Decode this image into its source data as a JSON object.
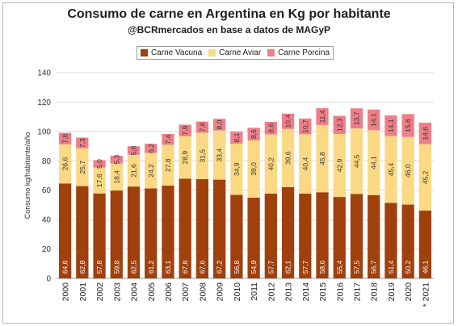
{
  "chart_data": {
    "type": "bar",
    "stacked": true,
    "title": "Consumo de carne en Argentina en Kg por habitante",
    "subtitle": "@BCRmercados en base a datos de MAGyP",
    "ylabel": "Consumo kg/habitante/año",
    "ylim": [
      0,
      140
    ],
    "yticks": [
      0,
      20,
      40,
      60,
      80,
      100,
      120,
      140
    ],
    "grid": true,
    "legend_position": "top",
    "categories": [
      "2000",
      "2001",
      "2002",
      "2003",
      "2004",
      "2005",
      "2006",
      "2007",
      "2008",
      "2009",
      "2010",
      "2011",
      "2012",
      "2013",
      "2014",
      "2015",
      "2016",
      "2017",
      "2018",
      "2019",
      "2020",
      "* 2021"
    ],
    "series": [
      {
        "name": "Carne Vacuna",
        "color": "#a0410d",
        "values": [
          64.6,
          62.8,
          57.8,
          59.8,
          62.5,
          61.2,
          63.1,
          67.8,
          67.6,
          67.2,
          56.8,
          54.9,
          57.7,
          62.1,
          57.7,
          58.6,
          55.4,
          57.5,
          56.7,
          51.4,
          50.2,
          46.1
        ],
        "labels": [
          "64,6",
          "62,8",
          "57,8",
          "59,8",
          "62,5",
          "61,2",
          "63,1",
          "67,8",
          "67,6",
          "67,2",
          "56,8",
          "54,9",
          "57,7",
          "62,1",
          "57,7",
          "58,6",
          "55,4",
          "57,5",
          "56,7",
          "51,4",
          "50,2",
          "46,1"
        ]
      },
      {
        "name": "Carne Aviar",
        "color": "#fbd984",
        "values": [
          26.6,
          25.7,
          17.6,
          18.4,
          21.6,
          24.2,
          27.8,
          28.9,
          31.5,
          33.4,
          34.9,
          39.0,
          40.2,
          39.6,
          40.4,
          45.8,
          42.9,
          44.5,
          44.1,
          45.4,
          46.0,
          45.2
        ],
        "labels": [
          "26,6",
          "25,7",
          "17,6",
          "18,4",
          "21,6",
          "24,2",
          "27,8",
          "28,9",
          "31,5",
          "33,4",
          "34,9",
          "39,0",
          "40,2",
          "39,6",
          "40,4",
          "45,8",
          "42,9",
          "44,5",
          "44,1",
          "45,4",
          "46,0",
          "45,2"
        ]
      },
      {
        "name": "Carne Porcina",
        "color": "#ee7f88",
        "values": [
          7.8,
          7.3,
          5.0,
          5.3,
          5.8,
          6.2,
          7.4,
          7.9,
          7.6,
          8.0,
          8.1,
          8.6,
          8.6,
          10.4,
          10.7,
          11.4,
          12.3,
          13.7,
          14.1,
          14.1,
          15.6,
          14.6
        ],
        "labels": [
          "7,8",
          "7,3",
          "5,0",
          "5,3",
          "5,8",
          "6,2",
          "7,4",
          "7,9",
          "7,6",
          "8,0",
          "8,1",
          "8,6",
          "8,6",
          "10,4",
          "10,7",
          "11,4",
          "12,3",
          "13,7",
          "14,1",
          "14,1",
          "15,6",
          "14,6"
        ]
      }
    ]
  }
}
